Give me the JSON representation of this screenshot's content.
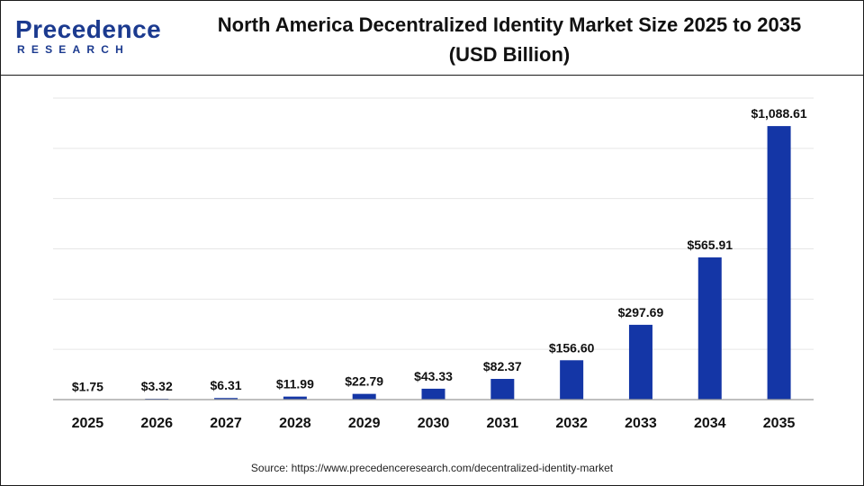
{
  "brand": {
    "name": "Precedence",
    "sub": "RESEARCH"
  },
  "title_line1": "North America Decentralized Identity Market Size 2025 to 2035",
  "title_line2": "(USD Billion)",
  "source": "Source: https://www.precedenceresearch.com/decentralized-identity-market",
  "colors": {
    "bar": "#1436a6",
    "brand": "#1b3a8f",
    "grid": "#e6e6e6",
    "axis": "#999999"
  },
  "chart_data": {
    "type": "bar",
    "title": "North America Decentralized Identity Market Size 2025 to 2035 (USD Billion)",
    "xlabel": "",
    "ylabel": "",
    "ylim": [
      0,
      1200
    ],
    "grid": true,
    "categories": [
      "2025",
      "2026",
      "2027",
      "2028",
      "2029",
      "2030",
      "2031",
      "2032",
      "2033",
      "2034",
      "2035"
    ],
    "values": [
      1.75,
      3.32,
      6.31,
      11.99,
      22.79,
      43.33,
      82.37,
      156.6,
      297.69,
      565.91,
      1088.61
    ],
    "data_labels": [
      "$1.75",
      "$3.32",
      "$6.31",
      "$11.99",
      "$22.79",
      "$43.33",
      "$82.37",
      "$156.60",
      "$297.69",
      "$565.91",
      "$1,088.61"
    ]
  }
}
